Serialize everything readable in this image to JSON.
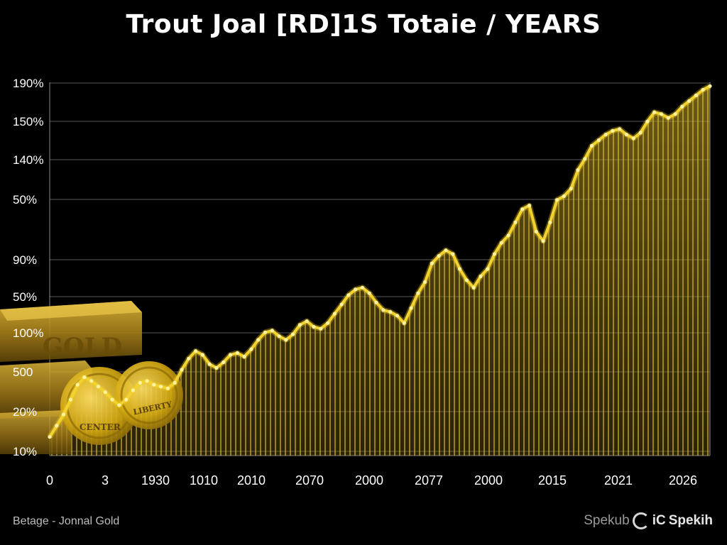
{
  "chart_data": {
    "type": "area",
    "title": "Trout Joal [RD]1S  Totaie / YEARS",
    "xlabel": "",
    "ylabel": "",
    "y_tick_labels": [
      "190%",
      "150%",
      "140%",
      "50%",
      "90%",
      "50%",
      "100%",
      "500",
      "20%",
      "10%"
    ],
    "x_tick_labels": [
      "0",
      "3",
      "1930",
      "1010",
      "2010",
      "2070",
      "2000",
      "2077",
      "2000",
      "2015",
      "2021",
      "2026"
    ],
    "grid": "horizontal",
    "legend": "none",
    "series": [
      {
        "values": [
          10,
          16,
          22,
          30,
          38,
          42,
          40,
          37,
          34,
          30,
          27,
          30,
          35,
          39,
          40,
          38,
          37,
          36,
          39,
          46,
          52,
          56,
          54,
          49,
          47,
          50,
          54,
          55,
          53,
          57,
          62,
          66,
          67,
          64,
          62,
          65,
          70,
          72,
          69,
          68,
          71,
          76,
          81,
          86,
          89,
          90,
          87,
          82,
          78,
          77,
          75,
          71,
          79,
          87,
          93,
          103,
          107,
          110,
          108,
          100,
          94,
          90,
          96,
          100,
          108,
          114,
          118,
          125,
          132,
          134,
          120,
          115,
          125,
          137,
          139,
          143,
          153,
          159,
          166,
          169,
          172,
          174,
          175,
          172,
          170,
          173,
          179,
          184,
          183,
          181,
          183,
          187,
          190,
          193,
          196,
          198
        ]
      }
    ],
    "x_range": [
      0,
      95
    ],
    "y_range": [
      0,
      200
    ]
  },
  "footer": {
    "source": "Betage - Jonnal Gold",
    "brand_faint": "Spekub",
    "brand_bold": "Spekih",
    "brand_icon_text": "iC"
  },
  "decor": {
    "bar_text": "GOLD",
    "coin_text_1": "CENTER",
    "coin_text_2": "LIBERTY"
  },
  "colors": {
    "background": "#000000",
    "gold": "#f2d22e",
    "gold_fill": "#b8961a",
    "grid": "#5a5a5a"
  }
}
